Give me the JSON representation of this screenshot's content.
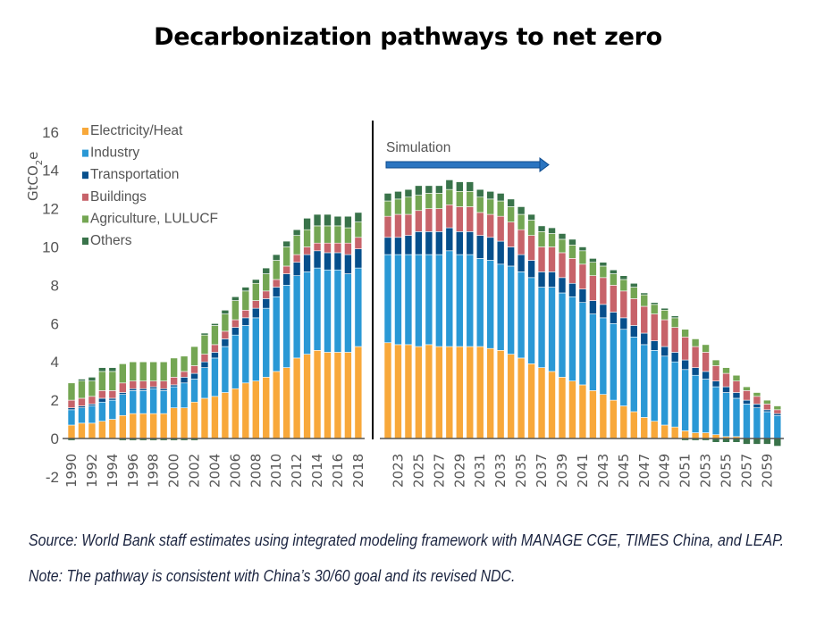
{
  "title": "Decarbonization pathways to net zero",
  "source": "Source: World Bank staff estimates using integrated modeling framework with MANAGE CGE, TIMES China, and LEAP.",
  "note": "Note: The pathway is consistent with China’s 30/60 goal and its revised NDC.",
  "chart_data": {
    "type": "bar",
    "stacked": true,
    "title": "Decarbonization pathways to net zero",
    "ylabel": "GtCO2e",
    "xlabel": "",
    "ylim": [
      -2,
      16
    ],
    "yticks": [
      -2,
      0,
      2,
      4,
      6,
      8,
      10,
      12,
      14,
      16
    ],
    "grid": false,
    "legend_position": "top-left",
    "annotation": {
      "label": "Simulation",
      "arrow": "right",
      "divider_between": [
        "2018",
        "2022"
      ]
    },
    "colors": {
      "Electricity/Heat": "#f8a83a",
      "Industry": "#2a98d5",
      "Transportation": "#064f8c",
      "Buildings": "#c7636a",
      "Agriculture, LULUCF": "#74a653",
      "Others": "#39734a"
    },
    "series_names": [
      "Electricity/Heat",
      "Industry",
      "Transportation",
      "Buildings",
      "Agriculture, LULUCF",
      "Others"
    ],
    "segments": [
      {
        "name": "historical",
        "categories": [
          "1990",
          "1991",
          "1992",
          "1993",
          "1994",
          "1995",
          "1996",
          "1997",
          "1998",
          "1999",
          "2000",
          "2001",
          "2002",
          "2003",
          "2004",
          "2005",
          "2006",
          "2007",
          "2008",
          "2009",
          "2010",
          "2011",
          "2012",
          "2013",
          "2014",
          "2015",
          "2016",
          "2017",
          "2018"
        ],
        "tick_labels": [
          "1990",
          "1992",
          "1994",
          "1996",
          "1998",
          "2000",
          "2002",
          "2004",
          "2006",
          "2008",
          "2010",
          "2012",
          "2014",
          "2016",
          "2018"
        ],
        "series": [
          {
            "name": "Electricity/Heat",
            "values": [
              0.7,
              0.8,
              0.8,
              0.9,
              1.0,
              1.2,
              1.3,
              1.3,
              1.3,
              1.3,
              1.6,
              1.6,
              1.9,
              2.1,
              2.2,
              2.4,
              2.6,
              2.9,
              3.0,
              3.2,
              3.5,
              3.7,
              4.2,
              4.4,
              4.6,
              4.5,
              4.5,
              4.5,
              4.8
            ]
          },
          {
            "name": "Industry",
            "values": [
              0.8,
              0.8,
              0.9,
              1.0,
              1.0,
              1.1,
              1.2,
              1.2,
              1.3,
              1.2,
              1.1,
              1.3,
              1.2,
              1.6,
              2.0,
              2.4,
              2.8,
              3.0,
              3.3,
              3.6,
              3.9,
              4.3,
              4.3,
              4.3,
              4.3,
              4.3,
              4.3,
              4.1,
              4.1
            ]
          },
          {
            "name": "Transportation",
            "values": [
              0.1,
              0.1,
              0.1,
              0.2,
              0.1,
              0.1,
              0.1,
              0.1,
              0.1,
              0.1,
              0.1,
              0.3,
              0.3,
              0.3,
              0.3,
              0.4,
              0.4,
              0.4,
              0.5,
              0.5,
              0.5,
              0.6,
              0.7,
              0.9,
              0.9,
              0.9,
              0.9,
              1.0,
              1.0
            ]
          },
          {
            "name": "Buildings",
            "values": [
              0.4,
              0.4,
              0.4,
              0.4,
              0.4,
              0.5,
              0.4,
              0.4,
              0.3,
              0.4,
              0.4,
              0.3,
              0.4,
              0.4,
              0.4,
              0.4,
              0.4,
              0.4,
              0.4,
              0.4,
              0.4,
              0.4,
              0.4,
              0.4,
              0.4,
              0.5,
              0.5,
              0.6,
              0.6
            ]
          },
          {
            "name": "Agriculture, LULUCF",
            "values": [
              0.9,
              0.9,
              0.8,
              1.0,
              1.0,
              1.0,
              1.0,
              1.0,
              1.0,
              1.0,
              1.0,
              0.8,
              1.0,
              1.0,
              1.0,
              0.9,
              1.0,
              1.0,
              0.9,
              0.9,
              1.0,
              1.0,
              1.0,
              0.9,
              0.9,
              0.9,
              0.9,
              0.8,
              0.8
            ]
          },
          {
            "name": "Others",
            "values": [
              -0.1,
              0.1,
              0.2,
              0.2,
              0.2,
              -0.1,
              -0.1,
              -0.1,
              -0.1,
              -0.1,
              -0.1,
              -0.1,
              -0.1,
              0.1,
              0.1,
              0.2,
              0.2,
              0.2,
              0.2,
              0.3,
              0.3,
              0.3,
              0.3,
              0.6,
              0.6,
              0.6,
              0.5,
              0.6,
              0.5
            ]
          }
        ]
      },
      {
        "name": "simulation",
        "categories": [
          "2022",
          "2023",
          "2024",
          "2025",
          "2026",
          "2027",
          "2028",
          "2029",
          "2030",
          "2031",
          "2032",
          "2033",
          "2034",
          "2035",
          "2036",
          "2037",
          "2038",
          "2039",
          "2040",
          "2041",
          "2042",
          "2043",
          "2044",
          "2045",
          "2046",
          "2047",
          "2048",
          "2049",
          "2050",
          "2051",
          "2052",
          "2053",
          "2054",
          "2055",
          "2056",
          "2057",
          "2058",
          "2059",
          "2060"
        ],
        "tick_labels": [
          "2023",
          "2025",
          "2027",
          "2029",
          "2031",
          "2033",
          "2035",
          "2037",
          "2039",
          "2041",
          "2043",
          "2045",
          "2047",
          "2049",
          "2051",
          "2053",
          "2055",
          "2057",
          "2059"
        ],
        "series": [
          {
            "name": "Electricity/Heat",
            "values": [
              5.0,
              4.9,
              4.9,
              4.8,
              4.9,
              4.8,
              4.8,
              4.8,
              4.8,
              4.8,
              4.7,
              4.6,
              4.4,
              4.2,
              3.9,
              3.7,
              3.5,
              3.2,
              3.0,
              2.8,
              2.5,
              2.3,
              2.0,
              1.7,
              1.4,
              1.1,
              0.9,
              0.7,
              0.6,
              0.4,
              0.3,
              0.3,
              0.2,
              0.1,
              0.1,
              0.0,
              0.0,
              0.0,
              0.0
            ]
          },
          {
            "name": "Industry",
            "values": [
              4.6,
              4.7,
              4.7,
              4.8,
              4.7,
              4.8,
              5.0,
              4.8,
              4.8,
              4.6,
              4.6,
              4.5,
              4.6,
              4.5,
              4.5,
              4.2,
              4.4,
              4.4,
              4.4,
              4.3,
              4.0,
              4.0,
              4.0,
              4.0,
              3.9,
              3.8,
              3.7,
              3.6,
              3.4,
              3.2,
              3.0,
              2.8,
              2.5,
              2.3,
              2.0,
              1.8,
              1.6,
              1.4,
              1.2
            ]
          },
          {
            "name": "Transportation",
            "values": [
              0.9,
              0.9,
              1.0,
              1.2,
              1.2,
              1.2,
              1.2,
              1.2,
              1.2,
              1.2,
              1.2,
              1.2,
              1.0,
              0.9,
              0.9,
              0.8,
              0.8,
              0.8,
              0.7,
              0.7,
              0.7,
              0.7,
              0.6,
              0.6,
              0.6,
              0.6,
              0.5,
              0.5,
              0.5,
              0.5,
              0.4,
              0.4,
              0.3,
              0.3,
              0.3,
              0.2,
              0.2,
              0.1,
              0.1
            ]
          },
          {
            "name": "Buildings",
            "values": [
              1.1,
              1.2,
              1.1,
              1.1,
              1.2,
              1.2,
              1.2,
              1.3,
              1.3,
              1.2,
              1.2,
              1.3,
              1.3,
              1.3,
              1.3,
              1.3,
              1.3,
              1.3,
              1.3,
              1.3,
              1.3,
              1.4,
              1.4,
              1.4,
              1.4,
              1.4,
              1.4,
              1.4,
              1.3,
              1.2,
              1.1,
              1.0,
              0.8,
              0.7,
              0.6,
              0.5,
              0.4,
              0.3,
              0.2
            ]
          },
          {
            "name": "Agriculture, LULUCF",
            "values": [
              0.8,
              0.8,
              0.9,
              0.8,
              0.8,
              0.8,
              0.8,
              0.8,
              0.8,
              0.8,
              0.8,
              0.8,
              0.8,
              0.8,
              0.8,
              0.8,
              0.7,
              0.7,
              0.7,
              0.7,
              0.7,
              0.6,
              0.6,
              0.6,
              0.6,
              0.6,
              0.5,
              0.5,
              0.5,
              0.4,
              0.4,
              0.4,
              0.3,
              0.3,
              0.3,
              0.2,
              0.2,
              0.2,
              0.2
            ]
          },
          {
            "name": "Others",
            "values": [
              0.4,
              0.4,
              0.4,
              0.5,
              0.4,
              0.4,
              0.5,
              0.5,
              0.5,
              0.4,
              0.4,
              0.4,
              0.4,
              0.4,
              0.3,
              0.3,
              0.3,
              0.3,
              0.3,
              0.2,
              0.2,
              0.2,
              0.2,
              0.2,
              0.2,
              0.1,
              0.1,
              0.1,
              0.1,
              -0.1,
              -0.1,
              -0.1,
              -0.2,
              -0.2,
              -0.2,
              -0.3,
              -0.3,
              -0.3,
              -0.4
            ]
          }
        ]
      }
    ]
  }
}
